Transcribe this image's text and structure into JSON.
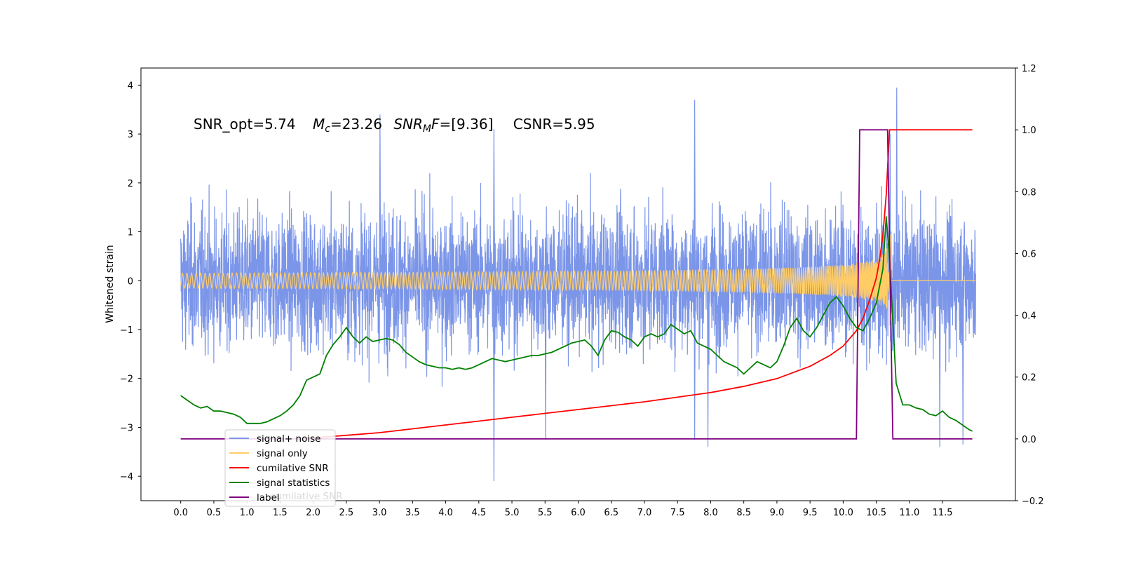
{
  "chart_data": {
    "type": "line",
    "title": "",
    "xlabel": "",
    "ylabel": "Whitened strain",
    "xlim": [
      -0.6,
      12.6
    ],
    "ylim": [
      -4.5,
      4.35
    ],
    "y2lim": [
      -0.2,
      1.2
    ],
    "x_ticks": [
      "0.0",
      "0.5",
      "1.0",
      "1.5",
      "2.0",
      "2.5",
      "3.0",
      "3.5",
      "4.0",
      "4.5",
      "5.0",
      "5.5",
      "6.0",
      "6.5",
      "7.0",
      "7.5",
      "8.0",
      "8.5",
      "9.0",
      "9.5",
      "10.0",
      "10.5",
      "11.0",
      "11.5"
    ],
    "y_ticks": [
      "4",
      "3",
      "2",
      "1",
      "0",
      "−1",
      "−2",
      "−3",
      "−4"
    ],
    "y2_ticks": [
      "1.2",
      "1.0",
      "0.8",
      "0.6",
      "0.4",
      "0.2",
      "0.0",
      "−0.2"
    ],
    "annotation": {
      "snr_opt": "SNR_opt=5.74",
      "mc_symbol": "M",
      "mc_sub": "c",
      "mc_value": "=23.26",
      "mf_symbol": "SNR",
      "mf_sub": "M",
      "mf_f": "F",
      "mf_value": "=[9.36]",
      "csnr": "CSNR=5.95"
    },
    "legend": {
      "placement": "lower-left",
      "entries": [
        {
          "label": "signal+ noise",
          "color": "#7b95e8"
        },
        {
          "label": "signal only",
          "color": "#ffcc66"
        },
        {
          "label": "cumilative SNR",
          "color": "#ff0000"
        },
        {
          "label": "signal statistics",
          "color": "#008000"
        },
        {
          "label": "label",
          "color": "#800080"
        }
      ],
      "ghost_text": "cumilative SNR"
    },
    "series": [
      {
        "name": "signal+ noise",
        "axis": "left",
        "color": "#7b95e8",
        "description": "white noise whitened strain",
        "x_range": [
          0.0,
          12.0
        ],
        "typical_amplitude": 1.3,
        "extreme_peaks": [
          {
            "x": 3.0,
            "y": 3.4
          },
          {
            "x": 4.72,
            "y": 3.1
          },
          {
            "x": 7.75,
            "y": 3.7
          },
          {
            "x": 10.8,
            "y": 3.95
          },
          {
            "x": 10.7,
            "y": 3.0
          },
          {
            "x": 4.72,
            "y": -4.1
          },
          {
            "x": 7.95,
            "y": -3.4
          },
          {
            "x": 11.45,
            "y": -3.4
          },
          {
            "x": 11.8,
            "y": -3.35
          },
          {
            "x": 5.5,
            "y": -3.25
          },
          {
            "x": 7.75,
            "y": -3.25
          }
        ]
      },
      {
        "name": "signal only",
        "axis": "left",
        "color": "#ffcc66",
        "description": "chirp waveform growing toward merger",
        "x_range": [
          0.0,
          12.0
        ],
        "merger_x": 10.7,
        "peak_amplitude": 1.0
      },
      {
        "name": "cumilative SNR",
        "axis": "right",
        "color": "#ff0000",
        "x": [
          1.6,
          2.0,
          3.0,
          4.0,
          5.0,
          6.0,
          7.0,
          8.0,
          8.5,
          9.0,
          9.5,
          9.8,
          10.0,
          10.2,
          10.3,
          10.4,
          10.5,
          10.55,
          10.6,
          10.65,
          10.7,
          10.75,
          11.0,
          11.5,
          11.95
        ],
        "values": [
          0.0,
          0.003,
          0.02,
          0.045,
          0.07,
          0.095,
          0.12,
          0.15,
          0.17,
          0.195,
          0.235,
          0.27,
          0.3,
          0.35,
          0.39,
          0.45,
          0.52,
          0.58,
          0.66,
          0.79,
          1.0,
          1.0,
          1.0,
          1.0,
          1.0
        ]
      },
      {
        "name": "signal statistics",
        "axis": "right",
        "color": "#008000",
        "x": [
          0.0,
          0.1,
          0.2,
          0.3,
          0.4,
          0.5,
          0.6,
          0.7,
          0.8,
          0.9,
          1.0,
          1.1,
          1.2,
          1.3,
          1.4,
          1.5,
          1.6,
          1.7,
          1.8,
          1.9,
          2.0,
          2.1,
          2.2,
          2.3,
          2.4,
          2.5,
          2.6,
          2.7,
          2.8,
          2.9,
          3.0,
          3.1,
          3.2,
          3.3,
          3.4,
          3.5,
          3.6,
          3.7,
          3.8,
          3.9,
          4.0,
          4.1,
          4.2,
          4.3,
          4.4,
          4.5,
          4.6,
          4.7,
          4.8,
          4.9,
          5.0,
          5.1,
          5.2,
          5.3,
          5.4,
          5.5,
          5.6,
          5.7,
          5.8,
          5.9,
          6.0,
          6.1,
          6.2,
          6.3,
          6.4,
          6.5,
          6.6,
          6.7,
          6.8,
          6.9,
          7.0,
          7.1,
          7.2,
          7.3,
          7.4,
          7.5,
          7.6,
          7.7,
          7.8,
          7.9,
          8.0,
          8.1,
          8.2,
          8.3,
          8.4,
          8.5,
          8.6,
          8.7,
          8.8,
          8.9,
          9.0,
          9.1,
          9.2,
          9.3,
          9.4,
          9.5,
          9.6,
          9.7,
          9.8,
          9.9,
          10.0,
          10.1,
          10.2,
          10.3,
          10.4,
          10.5,
          10.6,
          10.65,
          10.7,
          10.8,
          10.9,
          11.0,
          11.1,
          11.2,
          11.3,
          11.4,
          11.5,
          11.6,
          11.7,
          11.8,
          11.9,
          11.95
        ],
        "values": [
          0.14,
          0.125,
          0.11,
          0.1,
          0.105,
          0.09,
          0.09,
          0.085,
          0.08,
          0.07,
          0.05,
          0.05,
          0.05,
          0.055,
          0.065,
          0.075,
          0.09,
          0.11,
          0.14,
          0.19,
          0.2,
          0.21,
          0.27,
          0.305,
          0.33,
          0.36,
          0.33,
          0.31,
          0.33,
          0.315,
          0.32,
          0.325,
          0.32,
          0.305,
          0.28,
          0.265,
          0.25,
          0.24,
          0.235,
          0.23,
          0.23,
          0.225,
          0.23,
          0.225,
          0.23,
          0.24,
          0.25,
          0.26,
          0.255,
          0.25,
          0.255,
          0.26,
          0.265,
          0.27,
          0.27,
          0.275,
          0.28,
          0.29,
          0.3,
          0.31,
          0.315,
          0.32,
          0.3,
          0.27,
          0.32,
          0.35,
          0.345,
          0.33,
          0.32,
          0.3,
          0.33,
          0.34,
          0.33,
          0.34,
          0.37,
          0.355,
          0.34,
          0.35,
          0.31,
          0.3,
          0.29,
          0.27,
          0.25,
          0.24,
          0.23,
          0.21,
          0.23,
          0.25,
          0.24,
          0.23,
          0.25,
          0.3,
          0.36,
          0.39,
          0.35,
          0.33,
          0.36,
          0.4,
          0.44,
          0.46,
          0.43,
          0.39,
          0.36,
          0.35,
          0.39,
          0.44,
          0.55,
          0.72,
          0.58,
          0.18,
          0.11,
          0.11,
          0.1,
          0.095,
          0.08,
          0.075,
          0.09,
          0.07,
          0.06,
          0.045,
          0.03,
          0.025
        ]
      },
      {
        "name": "label",
        "axis": "right",
        "color": "#800080",
        "x": [
          0.0,
          10.2,
          10.25,
          10.67,
          10.75,
          11.95
        ],
        "values": [
          0.0,
          0.0,
          1.0,
          1.0,
          0.0,
          0.0
        ]
      }
    ]
  }
}
